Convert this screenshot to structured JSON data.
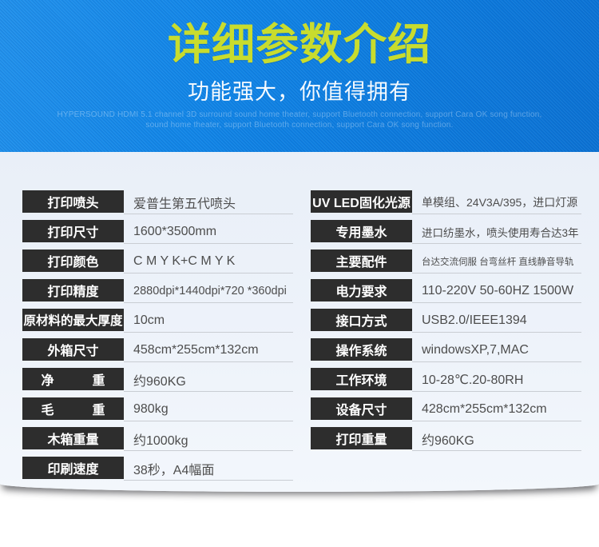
{
  "banner": {
    "title": "详细参数介绍",
    "subtitle": "功能强大，你值得拥有",
    "watermark_line1": "HYPERSOUND HDMI 5.1 channel 3D surround sound home theater, support Bluetooth connection, support Cara OK song function,",
    "watermark_line2": "sound home theater, support Bluetooth connection, support Cara OK song function.",
    "colors": {
      "background_blue": "#0d7cdf",
      "title_text": "#c8dc2e",
      "subtitle_text": "#ffffff"
    }
  },
  "specs": {
    "colors": {
      "sheet_background": "#eef3fa",
      "label_background": "#2d2d2d",
      "label_text": "#ffffff",
      "value_text": "#4d4d4d",
      "underline": "#c9cdd3"
    },
    "left": [
      {
        "label": "打印喷头",
        "value": "爱普生第五代喷头"
      },
      {
        "label": "打印尺寸",
        "value": "1600*3500mm"
      },
      {
        "label": "打印颜色",
        "value": "C M Y K+C M Y K"
      },
      {
        "label": "打印精度",
        "value": "2880dpi*1440dpi*720 *360dpi"
      },
      {
        "label": "原材料的最大厚度",
        "value": "10cm"
      },
      {
        "label": "外箱尺寸",
        "value": "458cm*255cm*132cm"
      },
      {
        "label": "净　　　重",
        "value": "约960KG"
      },
      {
        "label": "毛　　　重",
        "value": "980kg"
      },
      {
        "label": "木箱重量",
        "value": "约1000kg"
      },
      {
        "label": "印刷速度",
        "value": "38秒，A4幅面"
      }
    ],
    "right": [
      {
        "label": "UV LED固化光源",
        "value": "单模组、24V3A/395，进口灯源"
      },
      {
        "label": "专用墨水",
        "value": "进口纺墨水，喷头使用寿合达3年"
      },
      {
        "label": "主要配件",
        "value": "台达交流伺服 台弯丝杆 直线静音导轨"
      },
      {
        "label": "电力要求",
        "value": "110-220V 50-60HZ 1500W"
      },
      {
        "label": "接口方式",
        "value": "USB2.0/IEEE1394"
      },
      {
        "label": "操作系统",
        "value": "windowsXP,7,MAC"
      },
      {
        "label": "工作环境",
        "value": "10-28℃.20-80RH"
      },
      {
        "label": "设备尺寸",
        "value": "428cm*255cm*132cm"
      },
      {
        "label": "打印重量",
        "value": "约960KG"
      }
    ]
  }
}
